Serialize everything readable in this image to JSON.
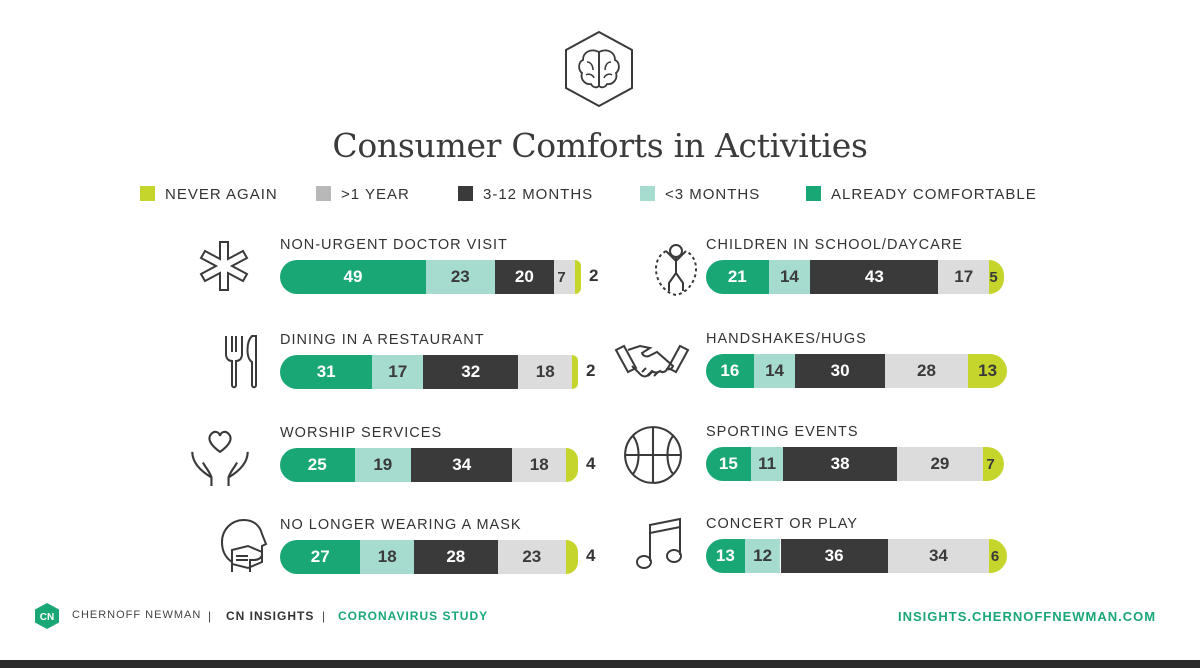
{
  "title": "Consumer Comforts in Activities",
  "colors": {
    "never": "#c5d52c",
    "year": "#dcdcdc",
    "months_3_12": "#3a3a3a",
    "lt3": "#a6dbd0",
    "comfortable": "#1aa776",
    "brand_teal": "#1aa776"
  },
  "legend": [
    {
      "label": "NEVER AGAIN",
      "color": "#c5d52c"
    },
    {
      "label": ">1 YEAR",
      "color": "#b8b8b8"
    },
    {
      "label": "3-12 MONTHS",
      "color": "#3a3a3a"
    },
    {
      "label": "<3 MONTHS",
      "color": "#a6dbd0"
    },
    {
      "label": "ALREADY COMFORTABLE",
      "color": "#1aa776"
    }
  ],
  "chart_data": {
    "type": "bar",
    "orientation": "horizontal-stacked",
    "title": "Consumer Comforts in Activities",
    "series_order": [
      "ALREADY COMFORTABLE",
      "<3 MONTHS",
      "3-12 MONTHS",
      ">1 YEAR",
      "NEVER AGAIN"
    ],
    "categories": [
      "NON-URGENT DOCTOR VISIT",
      "DINING IN A RESTAURANT",
      "WORSHIP SERVICES",
      "NO LONGER WEARING A MASK",
      "CHILDREN IN SCHOOL/DAYCARE",
      "HANDSHAKES/HUGS",
      "SPORTING EVENTS",
      "CONCERT OR PLAY"
    ],
    "series": [
      {
        "name": "ALREADY COMFORTABLE",
        "values": [
          49,
          31,
          25,
          27,
          21,
          16,
          15,
          13
        ]
      },
      {
        "name": "<3 MONTHS",
        "values": [
          23,
          17,
          19,
          18,
          14,
          14,
          11,
          12
        ]
      },
      {
        "name": "3-12 MONTHS",
        "values": [
          20,
          32,
          34,
          28,
          43,
          30,
          38,
          36
        ]
      },
      {
        "name": ">1 YEAR",
        "values": [
          7,
          18,
          18,
          23,
          17,
          28,
          29,
          34
        ]
      },
      {
        "name": "NEVER AGAIN",
        "values": [
          2,
          2,
          4,
          4,
          5,
          13,
          7,
          6
        ]
      }
    ],
    "icons": [
      "medical-star-icon",
      "fork-knife-icon",
      "hands-heart-icon",
      "mask-face-icon",
      "child-jump-rope-icon",
      "handshake-icon",
      "basketball-icon",
      "music-note-icon"
    ]
  },
  "footer": {
    "brand": "CHERNOFF NEWMAN",
    "separator": "|",
    "section": "CN INSIGHTS",
    "study": "CORONAVIRUS STUDY",
    "url": "INSIGHTS.CHERNOFFNEWMAN.COM",
    "logo_letters": "CN"
  }
}
